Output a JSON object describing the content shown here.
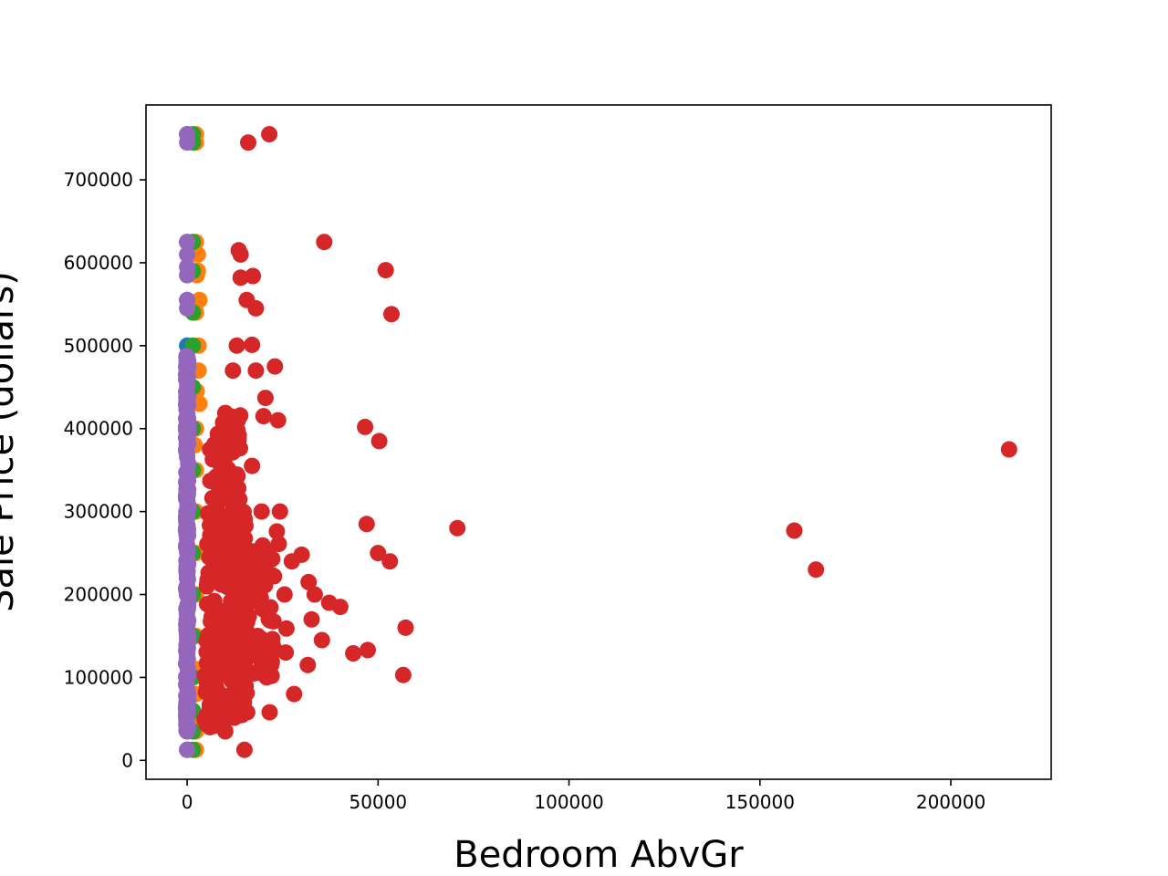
{
  "chart_data": {
    "type": "scatter",
    "title": "",
    "xlabel": "Bedroom AbvGr",
    "ylabel": "Sale Price (dollars)",
    "xlim": [
      -10775,
      226275
    ],
    "ylim": [
      -22775,
      790275
    ],
    "xticks": [
      0,
      50000,
      100000,
      150000,
      200000
    ],
    "xtick_labels": [
      "0",
      "50000",
      "100000",
      "150000",
      "200000"
    ],
    "yticks": [
      0,
      100000,
      200000,
      300000,
      400000,
      500000,
      600000,
      700000
    ],
    "ytick_labels": [
      "0",
      "100000",
      "200000",
      "300000",
      "400000",
      "500000",
      "600000",
      "700000"
    ],
    "grid": false,
    "legend": "none",
    "series": [
      {
        "color": "#1f77b4",
        "points": [
          [
            0,
            12789
          ],
          [
            0,
            35000
          ],
          [
            0,
            100000
          ],
          [
            0,
            200000
          ],
          [
            0,
            300000
          ],
          [
            0,
            400000
          ],
          [
            0,
            500000
          ],
          [
            0,
            555000
          ],
          [
            0,
            625000
          ],
          [
            0,
            755000
          ]
        ]
      },
      {
        "color": "#ff7f0e",
        "points": [
          [
            2300,
            12789
          ],
          [
            2300,
            35000
          ],
          [
            2300,
            50000
          ],
          [
            2300,
            80000
          ],
          [
            2300,
            110000
          ],
          [
            2300,
            150000
          ],
          [
            2300,
            200000
          ],
          [
            2300,
            250000
          ],
          [
            2300,
            300000
          ],
          [
            2300,
            350000
          ],
          [
            2000,
            380000
          ],
          [
            2300,
            400000
          ],
          [
            3200,
            430000
          ],
          [
            2500,
            445000
          ],
          [
            3000,
            470000
          ],
          [
            3000,
            500000
          ],
          [
            2300,
            540000
          ],
          [
            3200,
            555000
          ],
          [
            2500,
            585000
          ],
          [
            2800,
            590000
          ],
          [
            2800,
            610000
          ],
          [
            2300,
            625000
          ],
          [
            2300,
            745000
          ],
          [
            2300,
            755000
          ]
        ]
      },
      {
        "color": "#2ca02c",
        "points": [
          [
            1500,
            12789
          ],
          [
            1500,
            35000
          ],
          [
            1500,
            60000
          ],
          [
            1500,
            100000
          ],
          [
            1500,
            150000
          ],
          [
            1500,
            200000
          ],
          [
            1500,
            250000
          ],
          [
            1500,
            300000
          ],
          [
            1500,
            350000
          ],
          [
            1500,
            400000
          ],
          [
            1500,
            450000
          ],
          [
            1500,
            500000
          ],
          [
            1500,
            540000
          ],
          [
            1500,
            590000
          ],
          [
            1500,
            625000
          ],
          [
            1500,
            745000
          ],
          [
            1500,
            755000
          ]
        ]
      },
      {
        "color": "#d62728",
        "points": [
          [
            215245,
            375000
          ],
          [
            159000,
            277000
          ],
          [
            164660,
            230000
          ],
          [
            70761,
            280000
          ],
          [
            57200,
            160000
          ],
          [
            56600,
            103000
          ],
          [
            53500,
            538000
          ],
          [
            52000,
            591000
          ],
          [
            50300,
            385000
          ],
          [
            50000,
            250000
          ],
          [
            53100,
            240000
          ],
          [
            47000,
            285000
          ],
          [
            46600,
            402000
          ],
          [
            47300,
            133000
          ],
          [
            43500,
            129000
          ],
          [
            40100,
            185000
          ],
          [
            37200,
            190000
          ],
          [
            35900,
            625000
          ],
          [
            35300,
            145000
          ],
          [
            33400,
            200000
          ],
          [
            32600,
            170000
          ],
          [
            31800,
            215000
          ],
          [
            31600,
            115000
          ],
          [
            30000,
            248000
          ],
          [
            28000,
            80000
          ],
          [
            27400,
            240000
          ],
          [
            26000,
            159000
          ],
          [
            25800,
            130000
          ],
          [
            25500,
            200000
          ],
          [
            24300,
            300000
          ],
          [
            24000,
            261000
          ],
          [
            23800,
            410000
          ],
          [
            23500,
            276000
          ],
          [
            23000,
            475000
          ],
          [
            22000,
            115000
          ],
          [
            21600,
            58000
          ],
          [
            21500,
            755000
          ],
          [
            21000,
            180000
          ],
          [
            20500,
            437000
          ],
          [
            20000,
            415000
          ],
          [
            19500,
            300000
          ],
          [
            19000,
            200000
          ],
          [
            18500,
            150000
          ],
          [
            18000,
            470000
          ],
          [
            18000,
            545000
          ],
          [
            17500,
            105000
          ],
          [
            17200,
            584000
          ],
          [
            17000,
            501000
          ],
          [
            17000,
            355000
          ],
          [
            16500,
            250000
          ],
          [
            16000,
            745000
          ],
          [
            15600,
            555000
          ],
          [
            15000,
            12789
          ],
          [
            14000,
            582000
          ],
          [
            14000,
            610000
          ],
          [
            13500,
            615000
          ],
          [
            13000,
            500000
          ],
          [
            12000,
            470000
          ],
          [
            11000,
            66000
          ],
          [
            10000,
            35000
          ],
          [
            8000,
            380000
          ],
          [
            6000,
            375000
          ],
          [
            6000,
            40000
          ]
        ],
        "bands": [
          {
            "x": [
              5000,
              16000
            ],
            "y": [
              50000,
              300000
            ],
            "count": 280
          },
          {
            "x": [
              6000,
              14000
            ],
            "y": [
              300000,
              420000
            ],
            "count": 60
          },
          {
            "x": [
              15000,
              23000
            ],
            "y": [
              100000,
              270000
            ],
            "count": 70
          },
          {
            "x": [
              4500,
              8000
            ],
            "y": [
              40000,
              120000
            ],
            "count": 30
          }
        ]
      },
      {
        "color": "#9467bd",
        "points": [
          [
            0,
            12789
          ],
          [
            0,
            35000
          ],
          [
            0,
            545000
          ],
          [
            0,
            555000
          ],
          [
            0,
            585000
          ],
          [
            0,
            595000
          ],
          [
            0,
            610000
          ],
          [
            0,
            625000
          ],
          [
            0,
            745000
          ],
          [
            0,
            755000
          ]
        ],
        "bands": [
          {
            "x": [
              -300,
              300
            ],
            "y": [
              35000,
              500000
            ],
            "count": 200
          }
        ]
      }
    ]
  }
}
